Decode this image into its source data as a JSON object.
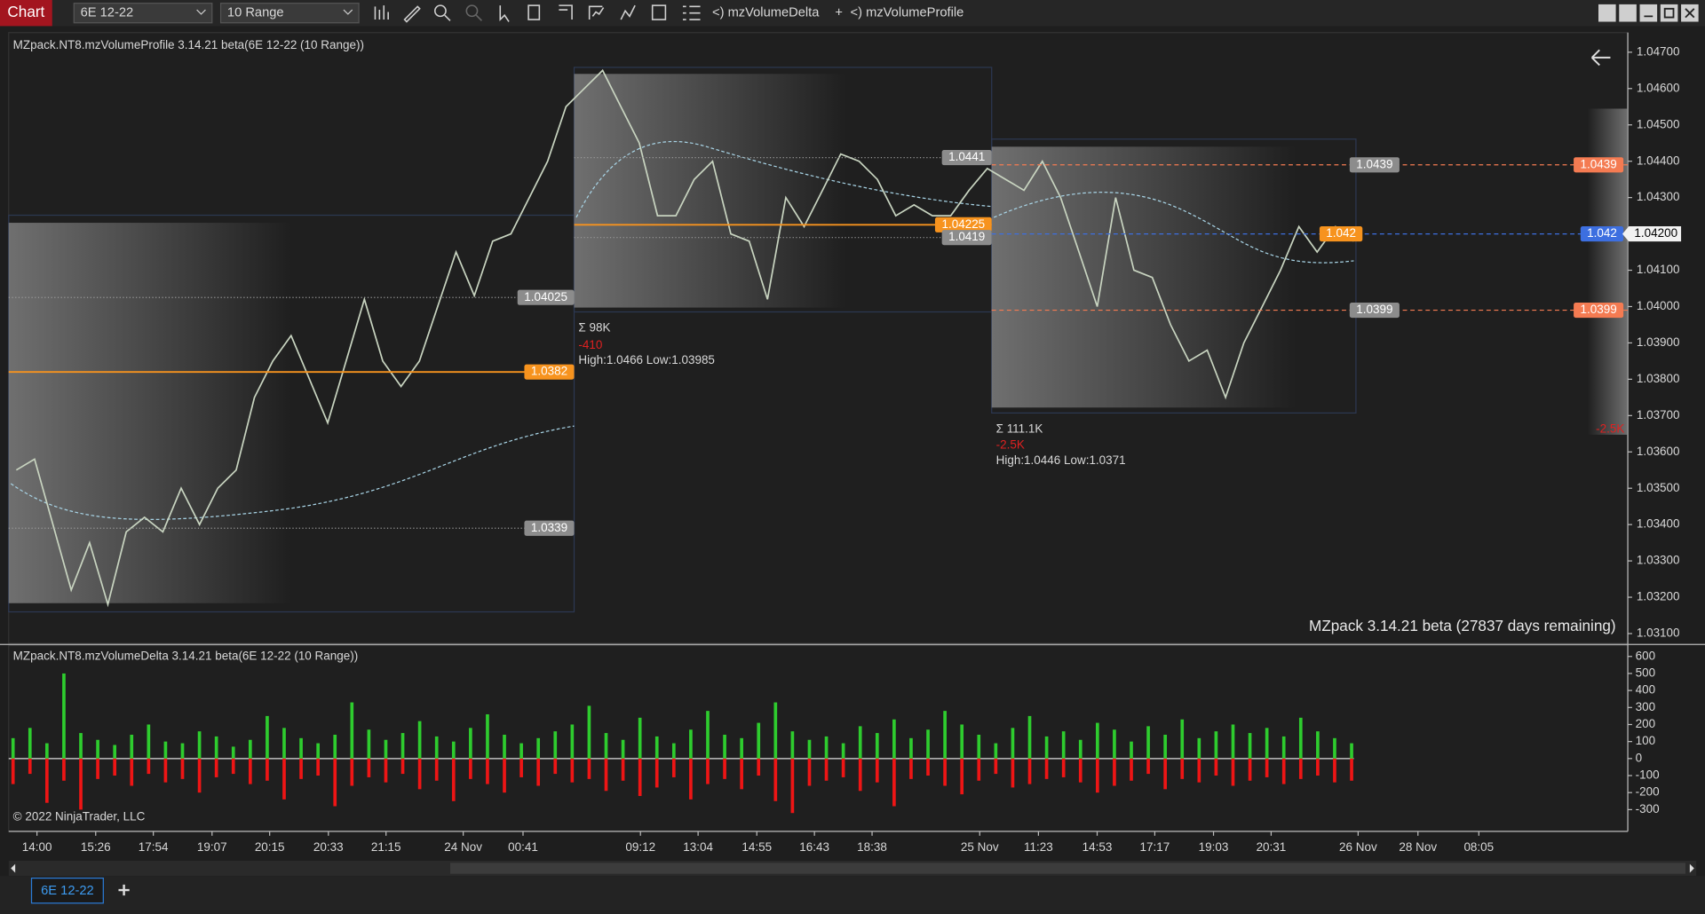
{
  "toolbar": {
    "title": "Chart",
    "instrument": "6E 12-22",
    "bar_type": "10 Range",
    "indicators": [
      "<) mzVolumeDelta",
      "+",
      "<) mzVolumeProfile"
    ]
  },
  "price_panel": {
    "label": "MZpack.NT8.mzVolumeProfile 3.14.21 beta(6E 12-22 (10 Range))",
    "ylim": [
      1.03073,
      1.04754
    ],
    "yticks": [
      {
        "value": 1.047,
        "label": "1.04700"
      },
      {
        "value": 1.046,
        "label": "1.04600"
      },
      {
        "value": 1.045,
        "label": "1.04500"
      },
      {
        "value": 1.044,
        "label": "1.04400"
      },
      {
        "value": 1.043,
        "label": "1.04300"
      },
      {
        "value": 1.042,
        "label": "1.04200"
      },
      {
        "value": 1.041,
        "label": "1.04100"
      },
      {
        "value": 1.04,
        "label": "1.04000"
      },
      {
        "value": 1.039,
        "label": "1.03900"
      },
      {
        "value": 1.038,
        "label": "1.03800"
      },
      {
        "value": 1.037,
        "label": "1.03700"
      },
      {
        "value": 1.036,
        "label": "1.03600"
      },
      {
        "value": 1.035,
        "label": "1.03500"
      },
      {
        "value": 1.034,
        "label": "1.03400"
      },
      {
        "value": 1.033,
        "label": "1.03300"
      },
      {
        "value": 1.032,
        "label": "1.03200"
      },
      {
        "value": 1.031,
        "label": "1.03100"
      }
    ],
    "price_color": "#c8d4c0",
    "closes": [
      1.0355,
      1.0358,
      1.034,
      1.0322,
      1.0335,
      1.0318,
      1.0338,
      1.0342,
      1.0338,
      1.035,
      1.034,
      1.035,
      1.0355,
      1.0375,
      1.0385,
      1.0392,
      1.038,
      1.0368,
      1.0385,
      1.0402,
      1.0385,
      1.0378,
      1.0385,
      1.04,
      1.0415,
      1.0403,
      1.0418,
      1.042,
      1.043,
      1.044,
      1.0455,
      1.046,
      1.0465,
      1.0455,
      1.0445,
      1.0425,
      1.0425,
      1.0435,
      1.044,
      1.042,
      1.0418,
      1.0402,
      1.043,
      1.0422,
      1.0432,
      1.0442,
      1.044,
      1.0435,
      1.0425,
      1.0428,
      1.0425,
      1.0425,
      1.0432,
      1.0438,
      1.0435,
      1.0432,
      1.044,
      1.043,
      1.0415,
      1.04,
      1.043,
      1.041,
      1.0408,
      1.0395,
      1.0385,
      1.0388,
      1.0375,
      1.039,
      1.04,
      1.041,
      1.0422,
      1.0415,
      1.0422,
      1.0418
    ],
    "levels": [
      {
        "value": 1.0382,
        "color": "#f7931e",
        "style": "solid"
      },
      {
        "value": 1.0339,
        "color": "#9a9a9a",
        "style": "dotted"
      },
      {
        "value": 1.04025,
        "color": "#9a9a9a",
        "style": "dotted"
      },
      {
        "value": 1.0441,
        "color": "#9a9a9a",
        "style": "dotted"
      },
      {
        "value": 1.04225,
        "color": "#f7931e",
        "style": "solid"
      },
      {
        "value": 1.0419,
        "color": "#9a9a9a",
        "style": "dotted"
      },
      {
        "value": 1.0439,
        "color": "#f47b52",
        "style": "dashed"
      },
      {
        "value": 1.0399,
        "color": "#f47b52",
        "style": "dashed"
      },
      {
        "value": 1.042,
        "color": "#3d6fe0",
        "style": "dashed"
      }
    ],
    "profile_stats": [
      {
        "sum": "Σ 98K",
        "delta": "-410",
        "range": "High:1.0466 Low:1.03985"
      },
      {
        "sum": "Σ 111.1K",
        "delta": "-2.5K",
        "range": "High:1.0446 Low:1.0371"
      }
    ],
    "right_delta": "-2.5K",
    "current_price": {
      "value": 1.042,
      "label": "1.04200"
    },
    "watermark": "MZpack 3.14.21 beta  (27837 days remaining)"
  },
  "delta_panel": {
    "label": "MZpack.NT8.mzVolumeDelta 3.14.21 beta(6E 12-22 (10 Range))",
    "ylim": [
      -428,
      664
    ],
    "yticks": [
      600,
      500,
      400,
      300,
      200,
      100,
      0,
      -100,
      -200,
      -300
    ],
    "buy_color": "#2ecc2e",
    "sell_color": "#ee1515",
    "buy": [
      120,
      180,
      90,
      500,
      150,
      110,
      80,
      140,
      200,
      100,
      90,
      160,
      130,
      70,
      110,
      250,
      180,
      120,
      90,
      140,
      330,
      170,
      110,
      150,
      220,
      130,
      100,
      180,
      260,
      140,
      90,
      120,
      160,
      200,
      310,
      150,
      110,
      240,
      130,
      90,
      170,
      280,
      140,
      120,
      210,
      330,
      160,
      110,
      130,
      90,
      190,
      150,
      230,
      120,
      170,
      280,
      200,
      140,
      90,
      180,
      250,
      130,
      160,
      110,
      210,
      170,
      100,
      190,
      140,
      230,
      120,
      160,
      200,
      150,
      180,
      130,
      240,
      160,
      120,
      90
    ],
    "sell": [
      -150,
      -90,
      -260,
      -130,
      -300,
      -120,
      -100,
      -160,
      -90,
      -140,
      -120,
      -200,
      -110,
      -90,
      -150,
      -130,
      -240,
      -120,
      -100,
      -280,
      -160,
      -110,
      -140,
      -90,
      -180,
      -130,
      -250,
      -120,
      -150,
      -200,
      -110,
      -160,
      -90,
      -140,
      -120,
      -190,
      -130,
      -220,
      -170,
      -110,
      -240,
      -150,
      -120,
      -180,
      -100,
      -250,
      -320,
      -160,
      -130,
      -110,
      -190,
      -140,
      -280,
      -120,
      -100,
      -160,
      -210,
      -130,
      -90,
      -170,
      -150,
      -120,
      -110,
      -140,
      -200,
      -160,
      -130,
      -90,
      -180,
      -120,
      -140,
      -100,
      -160,
      -130,
      -110,
      -150,
      -120,
      -100,
      -140,
      -130
    ],
    "copyright": "© 2022 NinjaTrader, LLC"
  },
  "x_axis": {
    "labels": [
      "14:00",
      "15:26",
      "17:54",
      "19:07",
      "20:15",
      "20:33",
      "21:15",
      "24 Nov",
      "00:41",
      "09:12",
      "13:04",
      "14:55",
      "16:43",
      "18:38",
      "25 Nov",
      "11:23",
      "14:53",
      "17:17",
      "19:03",
      "20:31",
      "26 Nov",
      "28 Nov",
      "08:05"
    ]
  },
  "tabs": [
    "6E 12-22"
  ]
}
